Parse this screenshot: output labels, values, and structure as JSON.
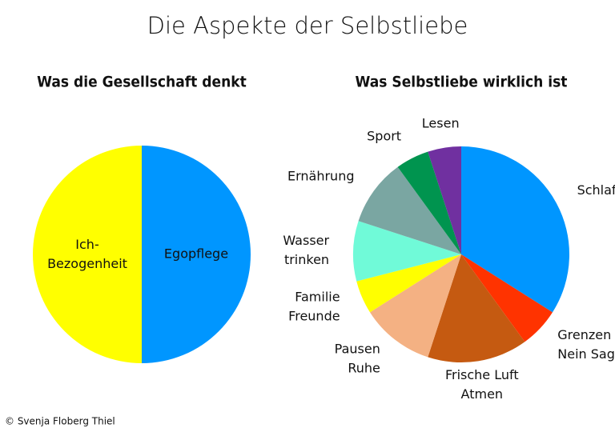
{
  "title": "Die Aspekte der Selbstliebe",
  "chart_data": [
    {
      "type": "pie",
      "title": "Was die Gesellschaft denkt",
      "label_position": "inside",
      "categories": [
        "Egopflege",
        "Ich-\nBezogenheit"
      ],
      "values": [
        50,
        50
      ],
      "colors": [
        "#0096ff",
        "#ffff00"
      ]
    },
    {
      "type": "pie",
      "title": "Was Selbstliebe wirklich ist",
      "label_position": "outside",
      "categories": [
        "Schlaf",
        "Grenzen\nNein Sagen",
        "Frische Luft\nAtmen",
        "Pausen\nRuhe",
        "Familie\nFreunde",
        "Wasser\ntrinken",
        "Ernährung",
        "Sport",
        "Lesen"
      ],
      "values": [
        34,
        6,
        15,
        11,
        5,
        9,
        10,
        5,
        5
      ],
      "colors": [
        "#0096ff",
        "#ff3300",
        "#c55a11",
        "#f4b183",
        "#ffff00",
        "#70fad8",
        "#7aa6a2",
        "#00944f",
        "#7030a0"
      ]
    }
  ],
  "footer": "© Svenja Floberg Thiel"
}
